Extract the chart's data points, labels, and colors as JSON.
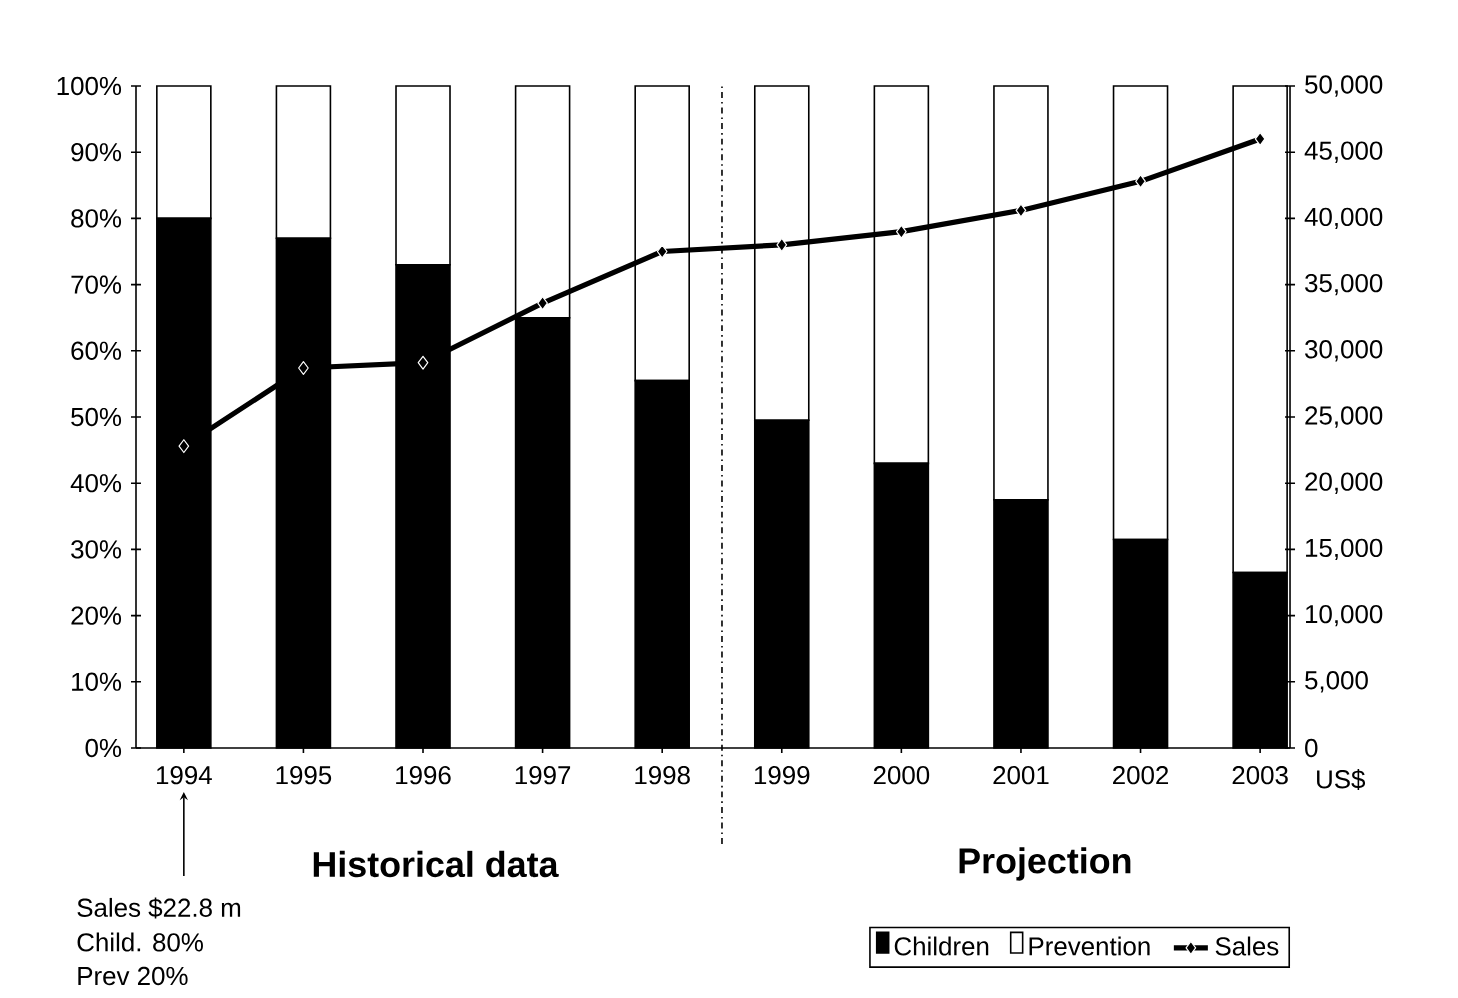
{
  "chart_data": {
    "type": "bar",
    "stacked": true,
    "categories": [
      "1994",
      "1995",
      "1996",
      "1997",
      "1998",
      "1999",
      "2000",
      "2001",
      "2002",
      "2003"
    ],
    "series": [
      {
        "name": "Children",
        "color": "#000000",
        "values": [
          80,
          77,
          73,
          65,
          55.5,
          49.5,
          43,
          37.5,
          31.5,
          26.5
        ]
      },
      {
        "name": "Prevention",
        "color": "#ffffff",
        "values": [
          20,
          23,
          27,
          35,
          44.5,
          50.5,
          57,
          62.5,
          68.5,
          73.5
        ]
      },
      {
        "name": "Sales",
        "type": "line",
        "axis": "y2",
        "color": "#000000",
        "marker": "diamond",
        "line_style": "solid",
        "values": [
          22800,
          28700,
          29100,
          33600,
          37500,
          38000,
          39000,
          40600,
          42800,
          46000
        ]
      }
    ],
    "ylim": [
      0,
      100
    ],
    "yticks": [
      {
        "value": 0,
        "label": "0%"
      },
      {
        "value": 10,
        "label": "10%"
      },
      {
        "value": 20,
        "label": "20%"
      },
      {
        "value": 30,
        "label": "30%"
      },
      {
        "value": 40,
        "label": "40%"
      },
      {
        "value": 50,
        "label": "50%"
      },
      {
        "value": 60,
        "label": "60%"
      },
      {
        "value": 70,
        "label": "70%"
      },
      {
        "value": 80,
        "label": "80%"
      },
      {
        "value": 90,
        "label": "90%"
      },
      {
        "value": 100,
        "label": "100%"
      }
    ],
    "y2lim": [
      0,
      50000
    ],
    "y2ticks": [
      0,
      {
        "value": 5000,
        "label": "5,000"
      },
      {
        "value": 10000,
        "label": "10,000"
      },
      {
        "value": 15000,
        "label": "15,000"
      },
      {
        "value": 20000,
        "label": "20,000"
      },
      {
        "value": 25000,
        "label": "25,000"
      },
      {
        "value": 30000,
        "label": "30,000"
      },
      {
        "value": 35000,
        "label": "35,000"
      },
      {
        "value": 40000,
        "label": "40,000"
      },
      {
        "value": 45000,
        "label": "45,000"
      },
      {
        "value": 50000,
        "label": "50,000"
      }
    ],
    "y2label": "US$",
    "legend": "bottom",
    "annotations": [
      "Historical data",
      "Projection",
      "Sales $22.8 m",
      "Child. 80%",
      "Prev 20%"
    ]
  }
}
